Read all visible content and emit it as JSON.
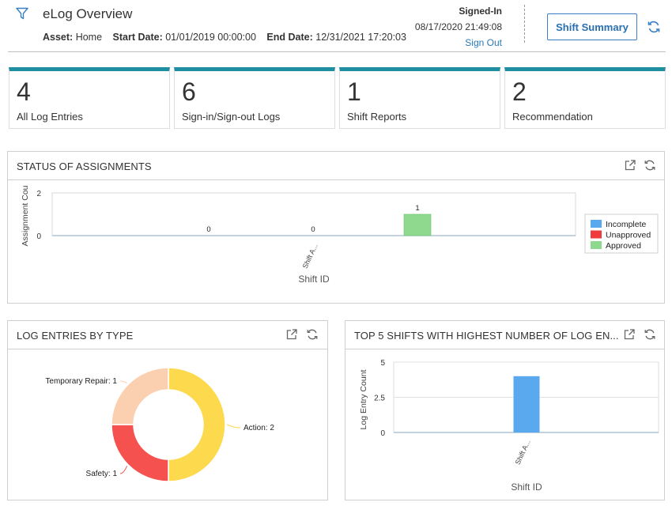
{
  "header": {
    "title": "eLog Overview",
    "asset_label": "Asset:",
    "asset_value": "Home",
    "start_label": "Start Date:",
    "start_value": "01/01/2019 00:00:00",
    "end_label": "End Date:",
    "end_value": "12/31/2021 17:20:03",
    "signed_label": "Signed-In",
    "signed_time": "08/17/2020 21:49:08",
    "sign_out": "Sign Out",
    "shift_summary": "Shift Summary"
  },
  "tiles": [
    {
      "count": "4",
      "label": "All Log Entries"
    },
    {
      "count": "6",
      "label": "Sign-in/Sign-out Logs"
    },
    {
      "count": "1",
      "label": "Shift Reports"
    },
    {
      "count": "2",
      "label": "Recommendation"
    }
  ],
  "colors": {
    "accent": "#1f8ea0",
    "link": "#2a7ab8",
    "incomplete": "#5aa9ee",
    "unapproved": "#ee3b3b",
    "approved": "#8fd98f",
    "donut_action": "#fdd94e",
    "donut_safety": "#f5524f",
    "donut_repair": "#fbd0b0"
  },
  "icons": [
    "filter-icon",
    "refresh-icon",
    "external-link-icon"
  ],
  "cards": {
    "status": {
      "title": "STATUS OF ASSIGNMENTS",
      "chart_data": {
        "type": "bar",
        "title": "STATUS OF ASSIGNMENTS",
        "xlabel": "Shift ID",
        "ylabel": "Assignment Cou",
        "ylim": [
          0,
          2
        ],
        "yticks": [
          "2",
          "0"
        ],
        "categories": [
          "Shift A..."
        ],
        "series": [
          {
            "name": "Incomplete",
            "values": [
              0
            ]
          },
          {
            "name": "Unapproved",
            "values": [
              0
            ]
          },
          {
            "name": "Approved",
            "values": [
              1
            ]
          }
        ],
        "data_labels": [
          "0",
          "0",
          "1"
        ],
        "legend": "right",
        "grid": false
      }
    },
    "log_types": {
      "title": "LOG ENTRIES BY TYPE",
      "chart_data": {
        "type": "pie",
        "title": "LOG ENTRIES BY TYPE",
        "categories": [
          "Action",
          "Safety",
          "Temporary Repair"
        ],
        "values": [
          2,
          1,
          1
        ],
        "labels": [
          "Action: 2",
          "Safety: 1",
          "Temporary Repair: 1"
        ],
        "donut": true
      }
    },
    "top5": {
      "title": "TOP 5 SHIFTS WITH HIGHEST NUMBER OF LOG EN...",
      "chart_data": {
        "type": "bar",
        "title": "TOP 5 SHIFTS WITH HIGHEST NUMBER OF LOG EN...",
        "xlabel": "Shift ID",
        "ylabel": "Log Entry Count",
        "ylim": [
          0,
          5
        ],
        "yticks": [
          "5",
          "2.5",
          "0"
        ],
        "categories": [
          "Shift A..."
        ],
        "values": [
          4
        ],
        "grid": true
      }
    }
  }
}
